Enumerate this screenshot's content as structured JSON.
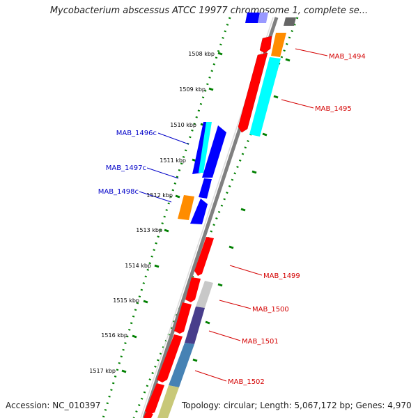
{
  "title": "Mycobacterium abscessus ATCC 19977 chromosome 1, complete se...",
  "footer": {
    "accession": "Accession: NC_010397",
    "meta": "Topology: circular; Length: 5,067,172 bp; Genes: 4,970"
  },
  "scale_labels": [
    "1508 kbp",
    "1509 kbp",
    "1510 kbp",
    "1511 kbp",
    "1512 kbp",
    "1513 kbp",
    "1514 kbp",
    "1515 kbp",
    "1516 kbp",
    "1517 kbp"
  ],
  "genes_forward": [
    {
      "label": "MAB_1494",
      "color": "#d40000"
    },
    {
      "label": "MAB_1495",
      "color": "#d40000"
    },
    {
      "label": "MAB_1499",
      "color": "#d40000"
    },
    {
      "label": "MAB_1500",
      "color": "#d40000"
    },
    {
      "label": "MAB_1501",
      "color": "#d40000"
    },
    {
      "label": "MAB_1502",
      "color": "#d40000"
    }
  ],
  "genes_reverse": [
    {
      "label": "MAB_1496c",
      "color": "#0000c8"
    },
    {
      "label": "MAB_1497c",
      "color": "#0000c8"
    },
    {
      "label": "MAB_1498c",
      "color": "#0000c8"
    }
  ],
  "colors": {
    "forward_cds": "#ff0000",
    "reverse_cds": "#0000ff",
    "cog_orange": "#ff8c00",
    "cog_cyan": "#00ffff",
    "cog_gray": "#c8c8c8",
    "cog_purple": "#483d8b",
    "cog_steelblue": "#4682b4",
    "cog_khaki": "#c8c878",
    "backbone": "#808080",
    "dotted_ring": "#008000"
  }
}
